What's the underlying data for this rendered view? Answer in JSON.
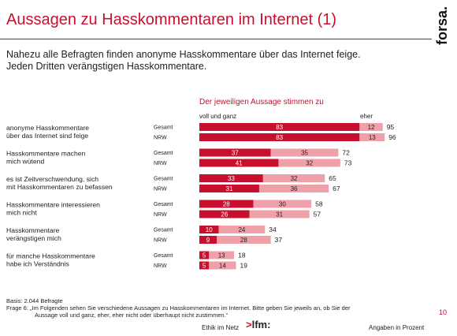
{
  "header": {
    "title": "Aussagen zu Hasskommentaren im Internet (1)",
    "logo_text": "forsa.",
    "subtitle_lines": [
      "Nahezu alle Befragten finden anonyme Hasskommentare über das Internet feige.",
      "Jeden Dritten verängstigen Hasskommentare."
    ]
  },
  "chart_data": {
    "type": "bar",
    "stacked": true,
    "orientation": "horizontal",
    "title": "Der jeweiligen Aussage stimmen zu",
    "series": [
      {
        "name": "voll und ganz",
        "color": "#c8102e"
      },
      {
        "name": "eher",
        "color": "#f0a0a8"
      }
    ],
    "items": [
      {
        "label_lines": [
          "anonyme Hasskommentare",
          "über das Internet sind feige"
        ],
        "rows": [
          {
            "group": "Gesamt",
            "voll": 83,
            "eher": 12,
            "total": 95
          },
          {
            "group": "NRW",
            "voll": 83,
            "eher": 13,
            "total": 96
          }
        ]
      },
      {
        "label_lines": [
          "Hasskommentare machen",
          "mich wütend"
        ],
        "rows": [
          {
            "group": "Gesamt",
            "voll": 37,
            "eher": 35,
            "total": 72
          },
          {
            "group": "NRW",
            "voll": 41,
            "eher": 32,
            "total": 73
          }
        ]
      },
      {
        "label_lines": [
          "es ist Zeitverschwendung, sich",
          "mit Hasskommentaren zu befassen"
        ],
        "rows": [
          {
            "group": "Gesamt",
            "voll": 33,
            "eher": 32,
            "total": 65
          },
          {
            "group": "NRW",
            "voll": 31,
            "eher": 36,
            "total": 67
          }
        ]
      },
      {
        "label_lines": [
          "Hasskommentare interessieren",
          "mich nicht"
        ],
        "rows": [
          {
            "group": "Gesamt",
            "voll": 28,
            "eher": 30,
            "total": 58
          },
          {
            "group": "NRW",
            "voll": 26,
            "eher": 31,
            "total": 57
          }
        ]
      },
      {
        "label_lines": [
          "Hasskommentare",
          "verängstigen mich"
        ],
        "rows": [
          {
            "group": "Gesamt",
            "voll": 10,
            "eher": 24,
            "total": 34
          },
          {
            "group": "NRW",
            "voll": 9,
            "eher": 28,
            "total": 37
          }
        ]
      },
      {
        "label_lines": [
          "für manche Hasskommentare",
          "habe ich Verständnis"
        ],
        "rows": [
          {
            "group": "Gesamt",
            "voll": 5,
            "eher": 13,
            "total": 18
          },
          {
            "group": "NRW",
            "voll": 5,
            "eher": 14,
            "total": 19
          }
        ]
      }
    ]
  },
  "footer": {
    "basis": "Basis: 2.044 Befragte",
    "frage_lines": [
      "Frage 6:   „Im Folgenden sehen Sie verschiedene Aussagen zu Hasskommentaren im Internet. Bitte geben Sie jeweils an, ob Sie der",
      "Aussage voll und ganz, eher, eher nicht oder überhaupt nicht zustimmen.“"
    ],
    "page_number": "10",
    "center_label": "Ethik im Netz",
    "lfm_logo": "lfm:",
    "right_label": "Angaben in Prozent"
  }
}
